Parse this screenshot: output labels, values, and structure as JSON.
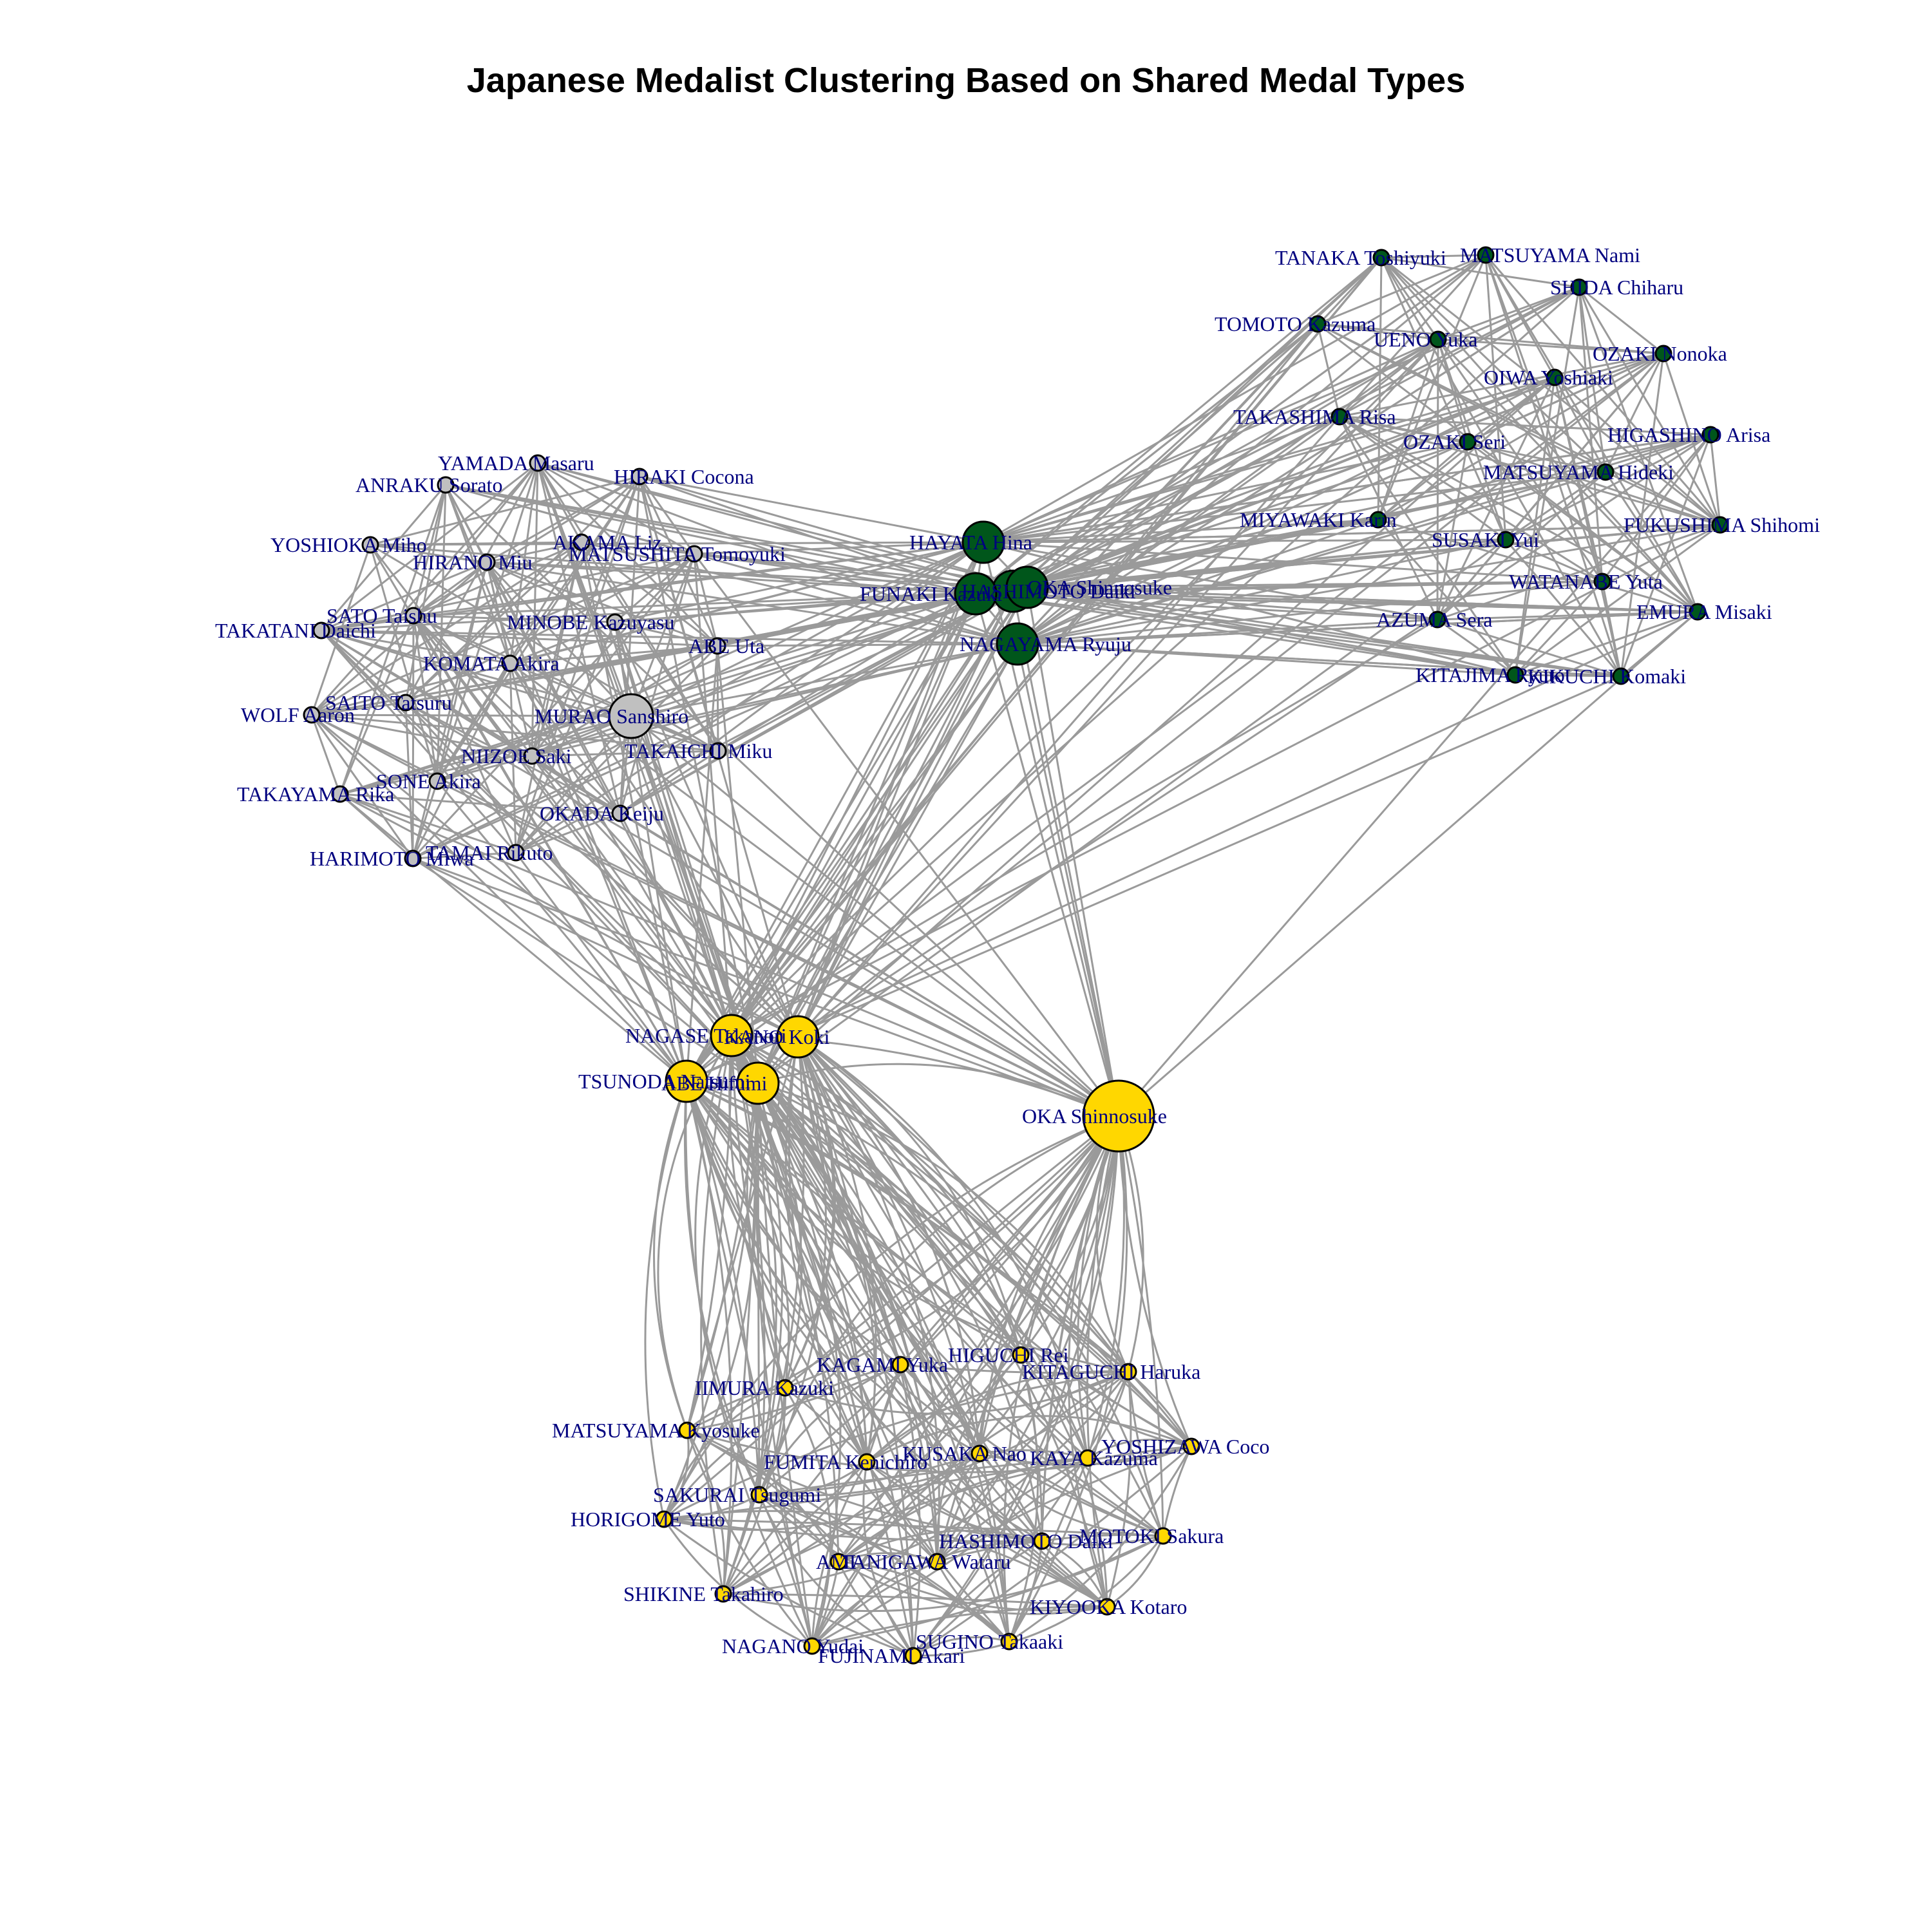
{
  "title": "Japanese Medalist Clustering Based on Shared Medal Types",
  "colors": {
    "edge": "#9a9a9a",
    "label": "#00007f",
    "stroke": "#000000",
    "gold": "#ffd700",
    "silver": "#c0c0c0",
    "green": "#00561b"
  },
  "groups": [
    {
      "id": "gold",
      "color": "#ffd700"
    },
    {
      "id": "silver",
      "color": "#c0c0c0"
    },
    {
      "id": "green",
      "color": "#00561b"
    }
  ],
  "nodes": [
    {
      "name": "HAYATA Hina",
      "group": "green",
      "size": "large"
    },
    {
      "name": "HASHIMOTO Daiki",
      "group": "green",
      "size": "large"
    },
    {
      "name": "FUNAKI Kazuki",
      "group": "green",
      "size": "large"
    },
    {
      "name": "OKA Shinnosuke",
      "group": "green",
      "size": "large"
    },
    {
      "name": "NAGAYAMA Ryuju",
      "group": "green",
      "size": "large"
    },
    {
      "name": "TANAKA Toshiyuki",
      "group": "green",
      "size": "small"
    },
    {
      "name": "MATSUYAMA Nami",
      "group": "green",
      "size": "small"
    },
    {
      "name": "SHIDA Chiharu",
      "group": "green",
      "size": "small"
    },
    {
      "name": "TOMOTO Kazuma",
      "group": "green",
      "size": "small"
    },
    {
      "name": "UENO Yuka",
      "group": "green",
      "size": "small"
    },
    {
      "name": "OZAKI Nonoka",
      "group": "green",
      "size": "small"
    },
    {
      "name": "OIWA Yoshiaki",
      "group": "green",
      "size": "small"
    },
    {
      "name": "TAKASHIMA Risa",
      "group": "green",
      "size": "small"
    },
    {
      "name": "OZAKI Seri",
      "group": "green",
      "size": "small"
    },
    {
      "name": "HIGASHINO Arisa",
      "group": "green",
      "size": "small"
    },
    {
      "name": "MATSUYAMA Hideki",
      "group": "green",
      "size": "small"
    },
    {
      "name": "MIYAWAKI Karin",
      "group": "green",
      "size": "small"
    },
    {
      "name": "FUKUSHIMA Shihomi",
      "group": "green",
      "size": "small"
    },
    {
      "name": "SUSAKI Yui",
      "group": "green",
      "size": "small"
    },
    {
      "name": "WATANABE Yuta",
      "group": "green",
      "size": "small"
    },
    {
      "name": "EMURA Misaki",
      "group": "green",
      "size": "small"
    },
    {
      "name": "AZUMA Sera",
      "group": "green",
      "size": "small"
    },
    {
      "name": "KITAJIMA Ryuto",
      "group": "green",
      "size": "small"
    },
    {
      "name": "KIKUCHI Komaki",
      "group": "green",
      "size": "small"
    },
    {
      "name": "YAMADA Masaru",
      "group": "silver",
      "size": "small"
    },
    {
      "name": "ANRAKU Sorato",
      "group": "silver",
      "size": "small"
    },
    {
      "name": "HIRAKI Cocona",
      "group": "silver",
      "size": "small"
    },
    {
      "name": "YOSHIOKA Miho",
      "group": "silver",
      "size": "small"
    },
    {
      "name": "AKAMA Liz",
      "group": "silver",
      "size": "small"
    },
    {
      "name": "HIRANO Miu",
      "group": "silver",
      "size": "small"
    },
    {
      "name": "MATSUSHITA Tomoyuki",
      "group": "silver",
      "size": "small"
    },
    {
      "name": "SATO Taishu",
      "group": "silver",
      "size": "small"
    },
    {
      "name": "TAKATANI Daichi",
      "group": "silver",
      "size": "small"
    },
    {
      "name": "MINOBE Kazuyasu",
      "group": "silver",
      "size": "small"
    },
    {
      "name": "ABE Uta",
      "group": "silver",
      "size": "small"
    },
    {
      "name": "KOMATA Akira",
      "group": "silver",
      "size": "small"
    },
    {
      "name": "SAITO Tatsuru",
      "group": "silver",
      "size": "small"
    },
    {
      "name": "WOLF Aaron",
      "group": "silver",
      "size": "small"
    },
    {
      "name": "MURAO Sanshiro",
      "group": "silver",
      "size": "medium"
    },
    {
      "name": "NIIZOE Saki",
      "group": "silver",
      "size": "small"
    },
    {
      "name": "TAKAICHI Miku",
      "group": "silver",
      "size": "small"
    },
    {
      "name": "SONE Akira",
      "group": "silver",
      "size": "small"
    },
    {
      "name": "TAKAYAMA Rika",
      "group": "silver",
      "size": "small"
    },
    {
      "name": "OKADA Keiju",
      "group": "silver",
      "size": "small"
    },
    {
      "name": "TAMAI Rikuto",
      "group": "silver",
      "size": "small"
    },
    {
      "name": "HARIMOTO Miwa",
      "group": "silver",
      "size": "small"
    },
    {
      "name": "NAGASE Takanori",
      "group": "gold",
      "size": "large"
    },
    {
      "name": "KANO Koki",
      "group": "gold",
      "size": "large"
    },
    {
      "name": "TSUNODA Natsumi",
      "group": "gold",
      "size": "large"
    },
    {
      "name": "ABE Hifumi",
      "group": "gold",
      "size": "large"
    },
    {
      "name": "OKA Shinnosuke",
      "group": "gold",
      "size": "xlarge"
    },
    {
      "name": "KAGAMI Yuka",
      "group": "gold",
      "size": "small"
    },
    {
      "name": "HIGUCHI Rei",
      "group": "gold",
      "size": "small"
    },
    {
      "name": "KITAGUCHI Haruka",
      "group": "gold",
      "size": "small"
    },
    {
      "name": "IIMURA Kazuki",
      "group": "gold",
      "size": "small"
    },
    {
      "name": "MATSUYAMA Kyosuke",
      "group": "gold",
      "size": "small"
    },
    {
      "name": "KUSAKA Nao",
      "group": "gold",
      "size": "small"
    },
    {
      "name": "YOSHIZAWA Coco",
      "group": "gold",
      "size": "small"
    },
    {
      "name": "FUMITA Kenichiro",
      "group": "gold",
      "size": "small"
    },
    {
      "name": "KAYA Kazuma",
      "group": "gold",
      "size": "small"
    },
    {
      "name": "SAKURAI Tsugumi",
      "group": "gold",
      "size": "small"
    },
    {
      "name": "HORIGOME Yuto",
      "group": "gold",
      "size": "small"
    },
    {
      "name": "HASHIMOTO Daiki",
      "group": "gold",
      "size": "small"
    },
    {
      "name": "MOTOKI Sakura",
      "group": "gold",
      "size": "small"
    },
    {
      "name": "AMI",
      "group": "gold",
      "size": "small"
    },
    {
      "name": "TANIGAWA Wataru",
      "group": "gold",
      "size": "small"
    },
    {
      "name": "SHIKINE Takahiro",
      "group": "gold",
      "size": "small"
    },
    {
      "name": "KIYOOKA Kotaro",
      "group": "gold",
      "size": "small"
    },
    {
      "name": "NAGANO Yudai",
      "group": "gold",
      "size": "small"
    },
    {
      "name": "SUGINO Takaaki",
      "group": "gold",
      "size": "small"
    },
    {
      "name": "FUJINAMI Akari",
      "group": "gold",
      "size": "small"
    }
  ]
}
